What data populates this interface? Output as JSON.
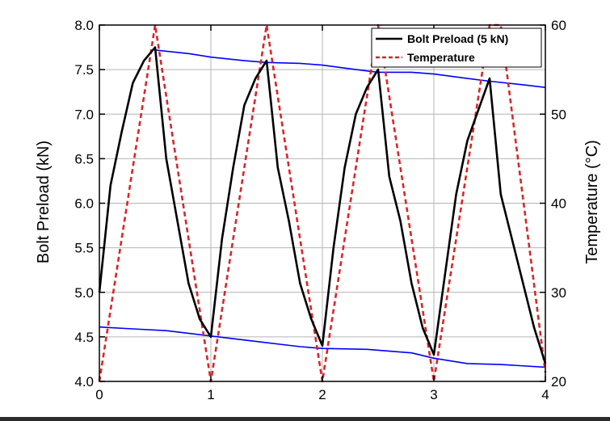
{
  "chart_data": {
    "type": "line",
    "title": "",
    "xlabel": "",
    "ylabel": "Bolt Preload (kN)",
    "y2label": "Temperature (°C)",
    "xlim": [
      0,
      4
    ],
    "ylim": [
      4.0,
      8.0
    ],
    "y2lim": [
      20,
      60
    ],
    "xticks": [
      0,
      1,
      2,
      3,
      4
    ],
    "yticks": [
      "4.0",
      "4.5",
      "5.0",
      "5.5",
      "6.0",
      "6.5",
      "7.0",
      "7.5",
      "8.0"
    ],
    "y2ticks": [
      20,
      30,
      40,
      50,
      60
    ],
    "grid": true,
    "legend_position": "top-right",
    "series": [
      {
        "name": "Bolt Preload (5 kN)",
        "axis": "left",
        "color": "#000000",
        "style": "solid",
        "x": [
          0,
          0.1,
          0.2,
          0.3,
          0.4,
          0.5,
          0.6,
          0.7,
          0.8,
          0.9,
          1.0,
          1.1,
          1.2,
          1.3,
          1.4,
          1.5,
          1.6,
          1.7,
          1.8,
          1.9,
          2.0,
          2.1,
          2.2,
          2.3,
          2.4,
          2.5,
          2.6,
          2.7,
          2.8,
          2.9,
          3.0,
          3.1,
          3.2,
          3.3,
          3.4,
          3.5,
          3.6,
          3.7,
          3.8,
          3.9,
          4.0
        ],
        "values": [
          5.0,
          6.2,
          6.8,
          7.35,
          7.6,
          7.75,
          6.5,
          5.8,
          5.1,
          4.7,
          4.5,
          5.6,
          6.4,
          7.1,
          7.4,
          7.6,
          6.4,
          5.8,
          5.1,
          4.7,
          4.4,
          5.5,
          6.4,
          7.0,
          7.3,
          7.5,
          6.3,
          5.8,
          5.1,
          4.6,
          4.3,
          5.2,
          6.1,
          6.7,
          7.05,
          7.4,
          6.1,
          5.6,
          5.1,
          4.6,
          4.2
        ]
      },
      {
        "name": "Temperature",
        "axis": "right",
        "color": "#d62728",
        "style": "dashed",
        "x": [
          0,
          0.5,
          1.0,
          1.5,
          2.0,
          2.5,
          3.0,
          3.5,
          3.6,
          4.0
        ],
        "values": [
          20,
          60,
          20,
          60,
          20,
          60,
          20,
          60,
          60,
          21
        ]
      },
      {
        "axis": "left",
        "color": "#0000ff",
        "style": "solid",
        "x": [
          0.5,
          0.8,
          1.0,
          1.3,
          1.5,
          1.8,
          2.0,
          2.3,
          2.5,
          2.8,
          3.0,
          3.3,
          3.5,
          3.8,
          4.0
        ],
        "values": [
          7.72,
          7.68,
          7.64,
          7.6,
          7.58,
          7.57,
          7.55,
          7.5,
          7.47,
          7.47,
          7.45,
          7.4,
          7.37,
          7.33,
          7.3
        ]
      },
      {
        "axis": "left",
        "color": "#0000ff",
        "style": "solid",
        "x": [
          0,
          0.3,
          0.6,
          1.0,
          1.4,
          1.8,
          2.0,
          2.4,
          2.8,
          3.0,
          3.3,
          3.6,
          4.0
        ],
        "values": [
          4.61,
          4.59,
          4.57,
          4.51,
          4.45,
          4.39,
          4.37,
          4.36,
          4.32,
          4.26,
          4.2,
          4.19,
          4.16
        ]
      }
    ]
  }
}
